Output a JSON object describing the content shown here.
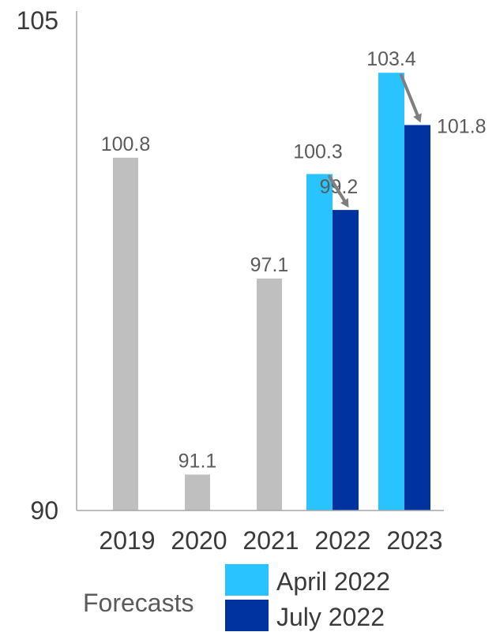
{
  "chart_data": {
    "type": "bar",
    "categories": [
      "2019",
      "2020",
      "2021",
      "2022",
      "2023"
    ],
    "ylim": [
      90,
      105
    ],
    "y_ticks": [
      "90",
      "105"
    ],
    "grid": false,
    "series": [
      {
        "name": "",
        "color": "#bfbfbf",
        "values": [
          100.8,
          91.1,
          97.1,
          null,
          null
        ],
        "labels": [
          "100.8",
          "91.1",
          "97.1",
          null,
          null
        ]
      },
      {
        "name": "April 2022",
        "color": "#29c4ff",
        "values": [
          null,
          null,
          null,
          100.3,
          103.4
        ],
        "labels": [
          null,
          null,
          null,
          "100.3",
          "103.4"
        ]
      },
      {
        "name": "July 2022",
        "color": "#0033a0",
        "values": [
          null,
          null,
          null,
          99.2,
          101.8
        ],
        "labels": [
          null,
          null,
          null,
          "99.2",
          "101.8"
        ]
      }
    ],
    "legend": {
      "placement": "bottom",
      "group_label": "Forecasts",
      "entries": [
        "April 2022",
        "July 2022"
      ]
    },
    "annotations": [
      {
        "type": "arrow",
        "from_series": "April 2022",
        "to_series": "July 2022",
        "category": "2022"
      },
      {
        "type": "arrow",
        "from_series": "April 2022",
        "to_series": "July 2022",
        "category": "2023"
      }
    ],
    "arrow_color": "#7f7f7f",
    "axis_color": "#a6a6a6"
  }
}
